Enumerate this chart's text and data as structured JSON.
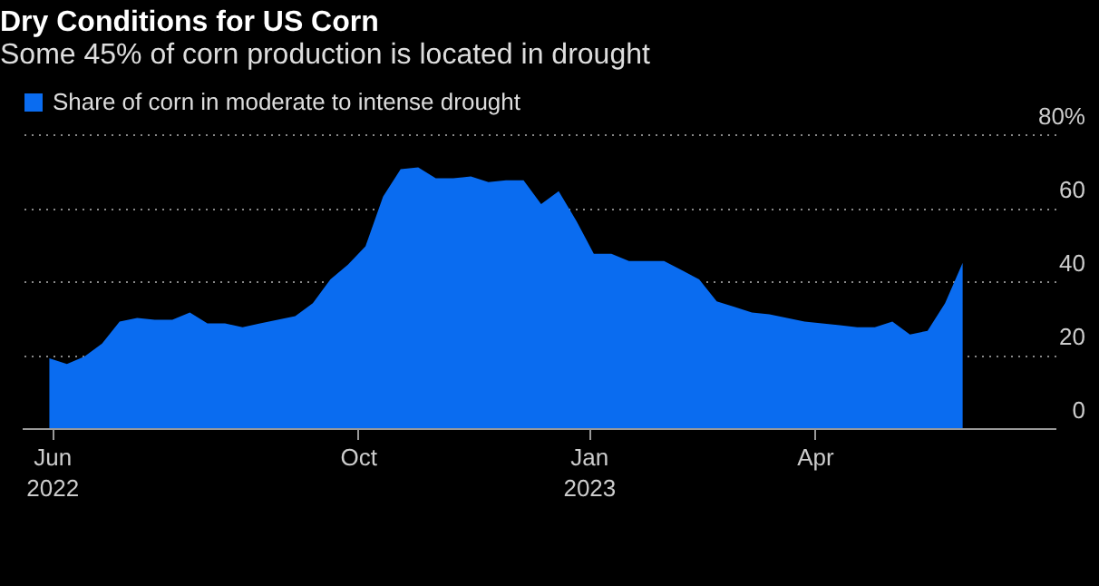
{
  "chart_data": {
    "type": "area",
    "title": "Dry Conditions for US Corn",
    "subtitle": "Some 45% of corn production is located in drought",
    "x": [
      "2022-05-31",
      "2022-06-07",
      "2022-06-14",
      "2022-06-21",
      "2022-06-28",
      "2022-07-05",
      "2022-07-12",
      "2022-07-19",
      "2022-07-26",
      "2022-08-02",
      "2022-08-09",
      "2022-08-16",
      "2022-08-23",
      "2022-08-30",
      "2022-09-06",
      "2022-09-13",
      "2022-09-20",
      "2022-09-27",
      "2022-10-04",
      "2022-10-11",
      "2022-10-18",
      "2022-10-25",
      "2022-11-01",
      "2022-11-08",
      "2022-11-15",
      "2022-11-22",
      "2022-11-29",
      "2022-12-06",
      "2022-12-13",
      "2022-12-20",
      "2022-12-27",
      "2023-01-03",
      "2023-01-10",
      "2023-01-17",
      "2023-01-24",
      "2023-01-31",
      "2023-02-07",
      "2023-02-14",
      "2023-02-21",
      "2023-02-28",
      "2023-03-07",
      "2023-03-14",
      "2023-03-21",
      "2023-03-28",
      "2023-04-04",
      "2023-04-11",
      "2023-04-18",
      "2023-04-25",
      "2023-05-02",
      "2023-05-09",
      "2023-05-16",
      "2023-05-23",
      "2023-05-30"
    ],
    "series": [
      {
        "name": "Share of corn in moderate to intense drought",
        "color": "#0a6cf0",
        "values": [
          19,
          17.5,
          19.5,
          23,
          29,
          30,
          29.5,
          29.5,
          31.5,
          28.5,
          28.5,
          27.5,
          28.5,
          29.5,
          30.5,
          34,
          40.5,
          44.5,
          49.5,
          63,
          70.5,
          71,
          68,
          68,
          68.5,
          67,
          67.5,
          67.5,
          61,
          64.5,
          56.5,
          47.5,
          47.5,
          45.5,
          45.5,
          45.5,
          43,
          40.5,
          34.5,
          33,
          31.5,
          31,
          30,
          29,
          28.5,
          28,
          27.5,
          27.5,
          29,
          25.5,
          26.5,
          34,
          45
        ]
      }
    ],
    "xlim": [
      "2022-05-20",
      "2023-07-06"
    ],
    "xticks": [
      {
        "value": "2022-06-01",
        "label": "Jun\n2022"
      },
      {
        "value": "2022-10-01",
        "label": "Oct"
      },
      {
        "value": "2023-01-01",
        "label": "Jan\n2023"
      },
      {
        "value": "2023-04-01",
        "label": "Apr"
      }
    ],
    "ylim": [
      0,
      80
    ],
    "yticks": [
      0,
      20,
      40,
      60,
      {
        "value": 80,
        "label": "80%"
      }
    ],
    "grid": "y",
    "legend": "top left"
  }
}
